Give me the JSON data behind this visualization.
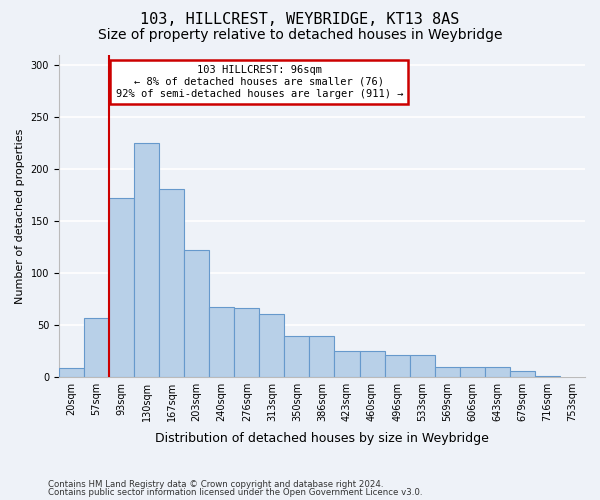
{
  "title": "103, HILLCREST, WEYBRIDGE, KT13 8AS",
  "subtitle": "Size of property relative to detached houses in Weybridge",
  "xlabel": "Distribution of detached houses by size in Weybridge",
  "ylabel": "Number of detached properties",
  "bar_labels": [
    "20sqm",
    "57sqm",
    "93sqm",
    "130sqm",
    "167sqm",
    "203sqm",
    "240sqm",
    "276sqm",
    "313sqm",
    "350sqm",
    "386sqm",
    "423sqm",
    "460sqm",
    "496sqm",
    "533sqm",
    "569sqm",
    "606sqm",
    "643sqm",
    "679sqm",
    "716sqm",
    "753sqm"
  ],
  "bar_values": [
    8,
    57,
    172,
    225,
    181,
    122,
    67,
    66,
    60,
    39,
    39,
    25,
    25,
    21,
    21,
    9,
    9,
    9,
    5,
    1,
    0
  ],
  "bar_color": "#b8d0e8",
  "bar_edgecolor": "#6699cc",
  "redline_index": 2,
  "annotation_text": "103 HILLCREST: 96sqm\n← 8% of detached houses are smaller (76)\n92% of semi-detached houses are larger (911) →",
  "annotation_box_facecolor": "#ffffff",
  "annotation_box_edgecolor": "#cc0000",
  "redline_color": "#cc0000",
  "ylim": [
    0,
    310
  ],
  "yticks": [
    0,
    50,
    100,
    150,
    200,
    250,
    300
  ],
  "background_color": "#eef2f8",
  "grid_color": "#ffffff",
  "footer1": "Contains HM Land Registry data © Crown copyright and database right 2024.",
  "footer2": "Contains public sector information licensed under the Open Government Licence v3.0.",
  "title_fontsize": 11,
  "subtitle_fontsize": 10,
  "xlabel_fontsize": 9,
  "ylabel_fontsize": 8,
  "tick_fontsize": 7
}
